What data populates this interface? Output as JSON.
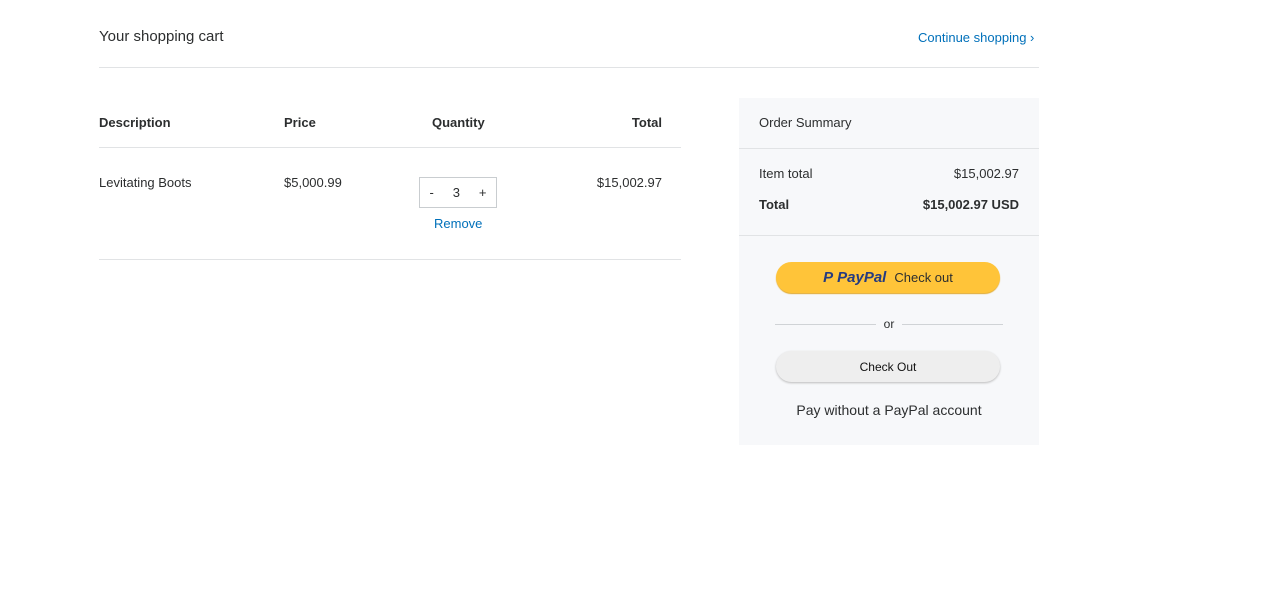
{
  "header": {
    "title": "Your shopping cart",
    "continue_label": "Continue shopping",
    "continue_icon": "chevron-right-icon"
  },
  "cart": {
    "columns": [
      "Description",
      "Price",
      "Quantity",
      "Total"
    ],
    "items": [
      {
        "description": "Levitating Boots",
        "price": "$5,000.99",
        "quantity": "3",
        "total": "$15,002.97",
        "minus": "-",
        "plus": "+",
        "remove_label": "Remove"
      }
    ]
  },
  "summary": {
    "title": "Order Summary",
    "item_total_label": "Item total",
    "item_total": "$15,002.97",
    "total_label": "Total",
    "total": "$15,002.97 USD",
    "paypal_logo": "PayPal",
    "paypal_checkout": "Check out",
    "or": "or",
    "checkout_label": "Check Out",
    "pay_without": "Pay without a PayPal account"
  },
  "colors": {
    "link": "#0070ba",
    "paypal_button": "#ffc439",
    "summary_bg": "#f7f8fa"
  }
}
